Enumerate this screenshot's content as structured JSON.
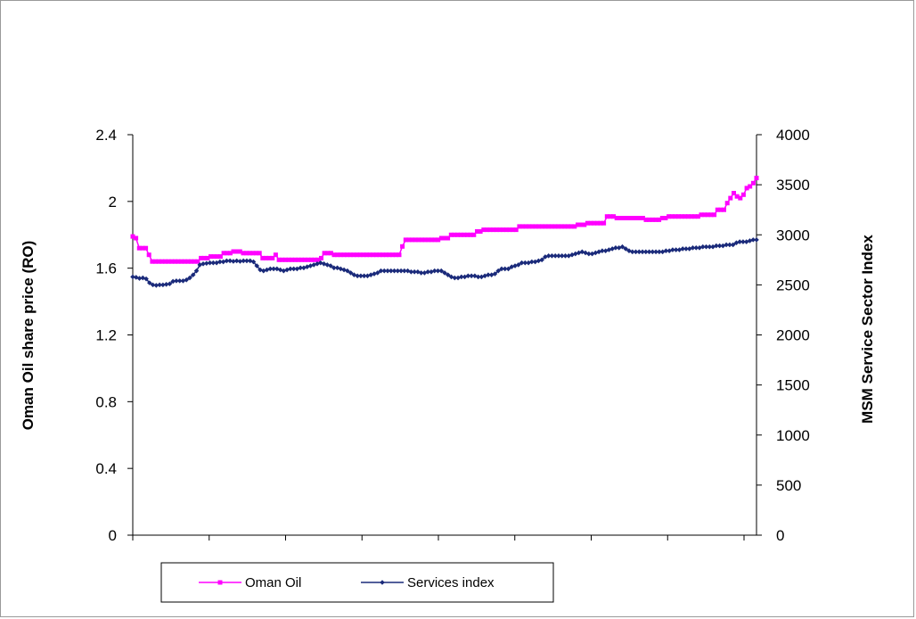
{
  "chart_data": {
    "type": "line",
    "title": "",
    "y_label_left": "Oman Oil share price (RO)",
    "y_label_right": "MSM Service Sector Index",
    "ylim_left": [
      0,
      2.4
    ],
    "ylim_right": [
      0,
      4000
    ],
    "yticks_left": [
      "0",
      "0.4",
      "0.8",
      "1.2",
      "1.6",
      "2",
      "2.4"
    ],
    "yticks_right": [
      "0",
      "500",
      "1000",
      "1500",
      "2000",
      "2500",
      "3000",
      "3500",
      "4000"
    ],
    "x_tick_count": 9,
    "legend_position": "bottom",
    "grid": false,
    "series": [
      {
        "name": "Oman Oil",
        "axis": "left",
        "color": "#ff00ff",
        "marker": "square",
        "values": [
          1.79,
          1.78,
          1.72,
          1.72,
          1.72,
          1.68,
          1.64,
          1.64,
          1.64,
          1.64,
          1.64,
          1.64,
          1.64,
          1.64,
          1.64,
          1.64,
          1.64,
          1.64,
          1.64,
          1.64,
          1.64,
          1.66,
          1.66,
          1.66,
          1.67,
          1.67,
          1.67,
          1.67,
          1.69,
          1.69,
          1.69,
          1.7,
          1.7,
          1.7,
          1.69,
          1.69,
          1.69,
          1.69,
          1.69,
          1.69,
          1.66,
          1.66,
          1.66,
          1.66,
          1.68,
          1.65,
          1.65,
          1.65,
          1.65,
          1.65,
          1.65,
          1.65,
          1.65,
          1.65,
          1.65,
          1.65,
          1.65,
          1.65,
          1.66,
          1.69,
          1.69,
          1.69,
          1.68,
          1.68,
          1.68,
          1.68,
          1.68,
          1.68,
          1.68,
          1.68,
          1.68,
          1.68,
          1.68,
          1.68,
          1.68,
          1.68,
          1.68,
          1.68,
          1.68,
          1.68,
          1.68,
          1.68,
          1.68,
          1.73,
          1.77,
          1.77,
          1.77,
          1.77,
          1.77,
          1.77,
          1.77,
          1.77,
          1.77,
          1.77,
          1.77,
          1.78,
          1.78,
          1.78,
          1.8,
          1.8,
          1.8,
          1.8,
          1.8,
          1.8,
          1.8,
          1.8,
          1.82,
          1.82,
          1.83,
          1.83,
          1.83,
          1.83,
          1.83,
          1.83,
          1.83,
          1.83,
          1.83,
          1.83,
          1.83,
          1.85,
          1.85,
          1.85,
          1.85,
          1.85,
          1.85,
          1.85,
          1.85,
          1.85,
          1.85,
          1.85,
          1.85,
          1.85,
          1.85,
          1.85,
          1.85,
          1.85,
          1.85,
          1.86,
          1.86,
          1.86,
          1.87,
          1.87,
          1.87,
          1.87,
          1.87,
          1.87,
          1.91,
          1.91,
          1.91,
          1.9,
          1.9,
          1.9,
          1.9,
          1.9,
          1.9,
          1.9,
          1.9,
          1.9,
          1.89,
          1.89,
          1.89,
          1.89,
          1.89,
          1.9,
          1.9,
          1.91,
          1.91,
          1.91,
          1.91,
          1.91,
          1.91,
          1.91,
          1.91,
          1.91,
          1.91,
          1.92,
          1.92,
          1.92,
          1.92,
          1.92,
          1.95,
          1.95,
          1.95,
          1.99,
          2.02,
          2.05,
          2.03,
          2.02,
          2.04,
          2.08,
          2.09,
          2.11,
          2.14
        ]
      },
      {
        "name": "Services index",
        "axis": "right",
        "color": "#1a2a7a",
        "marker": "diamond",
        "values": [
          2580,
          2575,
          2565,
          2570,
          2560,
          2520,
          2500,
          2495,
          2500,
          2500,
          2505,
          2510,
          2535,
          2540,
          2540,
          2540,
          2550,
          2570,
          2600,
          2640,
          2700,
          2710,
          2715,
          2720,
          2720,
          2720,
          2730,
          2730,
          2740,
          2740,
          2735,
          2740,
          2735,
          2740,
          2740,
          2740,
          2730,
          2690,
          2650,
          2640,
          2650,
          2660,
          2660,
          2660,
          2650,
          2640,
          2650,
          2660,
          2660,
          2660,
          2670,
          2670,
          2680,
          2690,
          2700,
          2710,
          2720,
          2710,
          2700,
          2690,
          2670,
          2670,
          2660,
          2650,
          2640,
          2620,
          2600,
          2590,
          2590,
          2590,
          2590,
          2600,
          2610,
          2620,
          2640,
          2640,
          2640,
          2640,
          2640,
          2640,
          2640,
          2640,
          2640,
          2630,
          2630,
          2630,
          2620,
          2620,
          2630,
          2630,
          2640,
          2640,
          2640,
          2620,
          2600,
          2580,
          2570,
          2570,
          2580,
          2580,
          2590,
          2590,
          2590,
          2580,
          2580,
          2590,
          2600,
          2600,
          2610,
          2640,
          2660,
          2660,
          2660,
          2680,
          2690,
          2700,
          2720,
          2720,
          2720,
          2730,
          2730,
          2740,
          2750,
          2780,
          2790,
          2790,
          2790,
          2790,
          2790,
          2790,
          2790,
          2800,
          2810,
          2820,
          2830,
          2820,
          2810,
          2810,
          2820,
          2830,
          2840,
          2840,
          2850,
          2860,
          2870,
          2870,
          2880,
          2860,
          2840,
          2830,
          2830,
          2830,
          2830,
          2830,
          2830,
          2830,
          2830,
          2830,
          2830,
          2840,
          2840,
          2850,
          2850,
          2850,
          2860,
          2860,
          2860,
          2870,
          2870,
          2870,
          2880,
          2880,
          2880,
          2880,
          2890,
          2890,
          2890,
          2900,
          2900,
          2900,
          2920,
          2930,
          2930,
          2930,
          2940,
          2950,
          2950
        ]
      }
    ]
  }
}
